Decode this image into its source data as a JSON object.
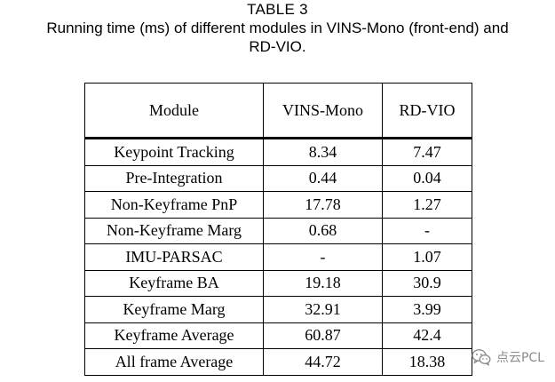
{
  "caption": {
    "table_number": "TABLE 3",
    "title_line1": "Running time (ms) of different modules in VINS-Mono (front-end) and",
    "title_line2": "RD-VIO."
  },
  "table": {
    "headers": [
      "Module",
      "VINS-Mono",
      "RD-VIO"
    ],
    "rows": [
      [
        "Keypoint Tracking",
        "8.34",
        "7.47"
      ],
      [
        "Pre-Integration",
        "0.44",
        "0.04"
      ],
      [
        "Non-Keyframe PnP",
        "17.78",
        "1.27"
      ],
      [
        "Non-Keyframe Marg",
        "0.68",
        "-"
      ],
      [
        "IMU-PARSAC",
        "-",
        "1.07"
      ],
      [
        "Keyframe BA",
        "19.18",
        "30.9"
      ],
      [
        "Keyframe Marg",
        "32.91",
        "3.99"
      ],
      [
        "Keyframe Average",
        "60.87",
        "42.4"
      ],
      [
        "All frame Average",
        "44.72",
        "18.38"
      ]
    ]
  },
  "watermark": {
    "text": "点云PCL",
    "icon": "wechat-icon",
    "color": "#8c8c8c"
  }
}
